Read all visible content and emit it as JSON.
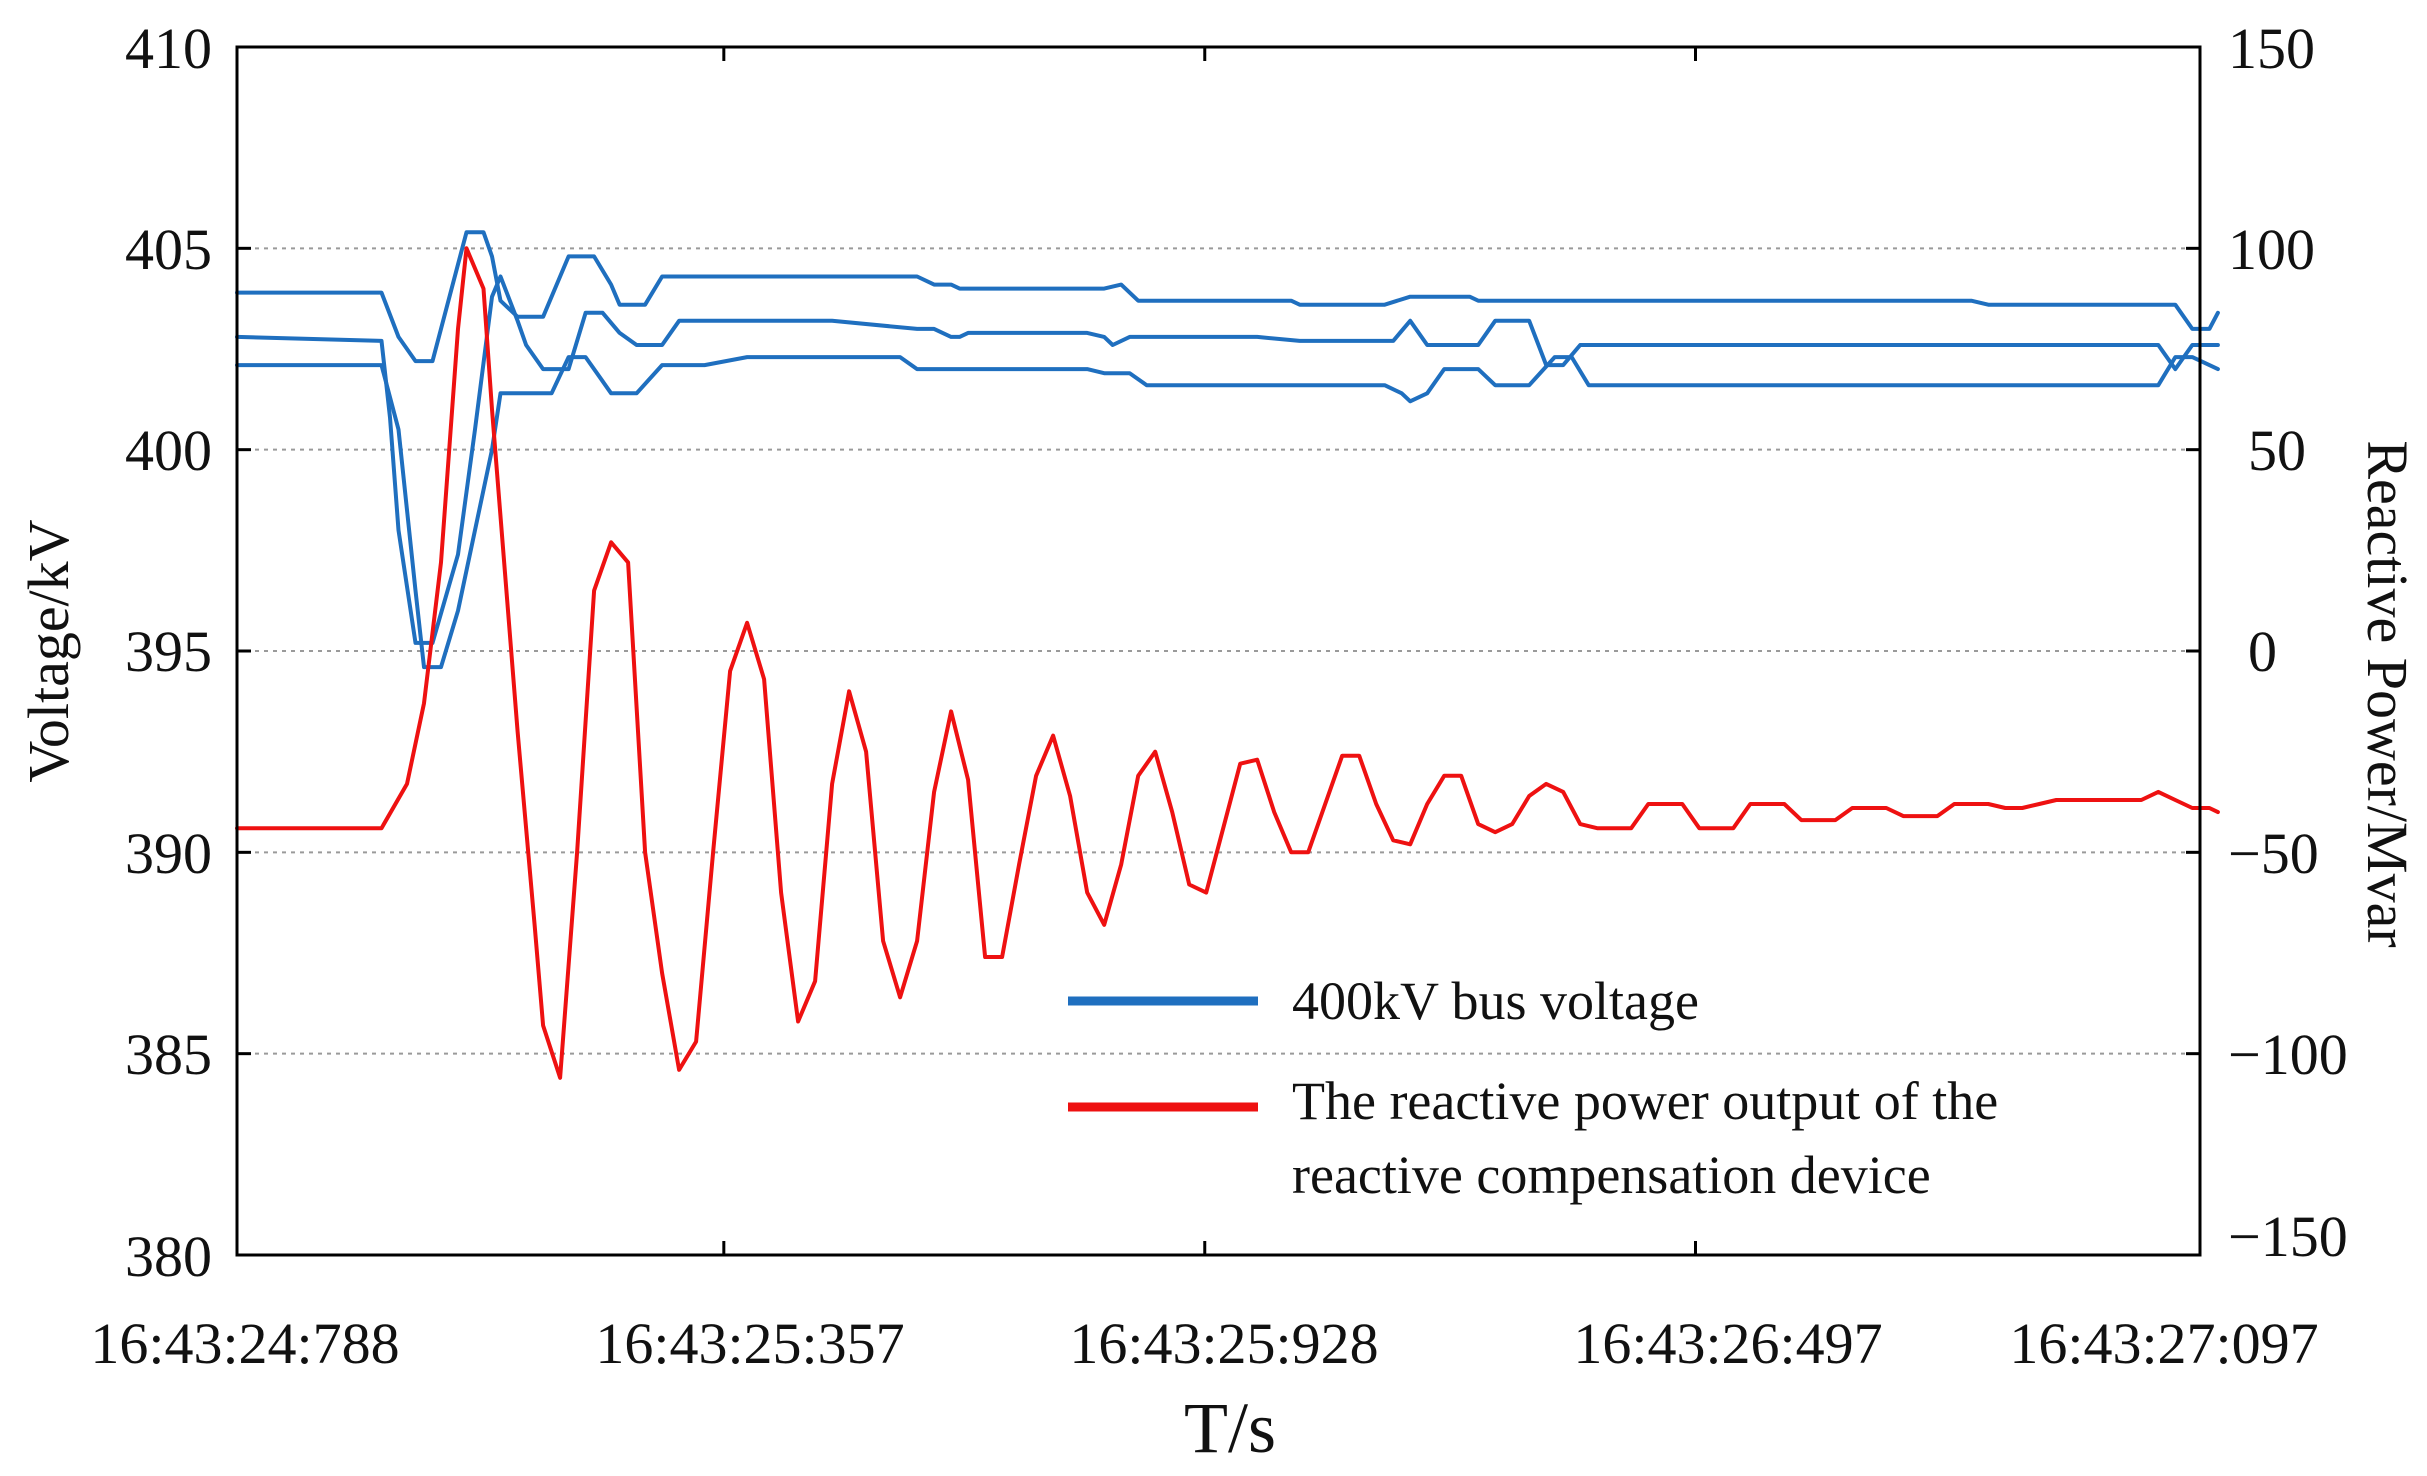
{
  "chart_data": {
    "type": "line",
    "title": "",
    "xlabel": "T/s",
    "ylabel_left": "Voltage/kV",
    "ylabel_right": "Reactive Power/Mvar",
    "x_tick_labels": [
      "16:43:24:788",
      "16:43:25:357",
      "16:43:25:928",
      "16:43:26:497",
      "16:43:27:097"
    ],
    "xlim": [
      0,
      2.309
    ],
    "ylim_left": [
      380,
      410
    ],
    "ylim_right": [
      -150,
      150
    ],
    "left_ticks": [
      "380",
      "385",
      "390",
      "395",
      "400",
      "405",
      "410"
    ],
    "right_ticks": [
      "−150",
      "−100",
      "−50",
      "0",
      "50",
      "100",
      "150"
    ],
    "grid": "horizontal dotted at 385, 390, 395, 400, 405 kV",
    "legend_position": "bottom-right",
    "legend": [
      {
        "label": "400kV bus voltage",
        "color": "#1f6fbf"
      },
      {
        "label_lines": [
          "The reactive power output of the",
          "reactive compensation device"
        ],
        "color": "#ee1111"
      }
    ],
    "series": [
      {
        "name": "400kV bus voltage",
        "axis": "left",
        "color": "#1f6fbf",
        "points": [
          [
            0.0,
            403.9
          ],
          [
            0.17,
            403.9
          ],
          [
            0.19,
            402.8
          ],
          [
            0.21,
            402.2
          ],
          [
            0.23,
            402.2
          ],
          [
            0.24,
            403.0
          ],
          [
            0.26,
            404.6
          ],
          [
            0.27,
            405.4
          ],
          [
            0.29,
            405.4
          ],
          [
            0.3,
            404.8
          ],
          [
            0.31,
            403.7
          ],
          [
            0.33,
            403.3
          ],
          [
            0.36,
            403.3
          ],
          [
            0.38,
            404.3
          ],
          [
            0.39,
            404.8
          ],
          [
            0.41,
            404.8
          ],
          [
            0.42,
            404.8
          ],
          [
            0.44,
            404.1
          ],
          [
            0.45,
            403.6
          ],
          [
            0.47,
            403.6
          ],
          [
            0.48,
            403.6
          ],
          [
            0.5,
            404.3
          ],
          [
            0.6,
            404.3
          ],
          [
            0.8,
            404.3
          ],
          [
            0.82,
            404.1
          ],
          [
            0.84,
            404.1
          ],
          [
            0.85,
            404.0
          ],
          [
            0.9,
            404.0
          ],
          [
            1.0,
            404.0
          ],
          [
            1.02,
            404.0
          ],
          [
            1.04,
            404.1
          ],
          [
            1.06,
            403.7
          ],
          [
            1.2,
            403.7
          ],
          [
            1.24,
            403.7
          ],
          [
            1.25,
            403.6
          ],
          [
            1.35,
            403.6
          ],
          [
            1.38,
            403.8
          ],
          [
            1.45,
            403.8
          ],
          [
            1.46,
            403.7
          ],
          [
            1.6,
            403.7
          ],
          [
            1.8,
            403.7
          ],
          [
            2.0,
            403.7
          ],
          [
            2.04,
            403.7
          ],
          [
            2.06,
            403.6
          ],
          [
            2.28,
            403.6
          ],
          [
            2.3,
            403.0
          ],
          [
            2.32,
            403.0
          ],
          [
            2.33,
            403.4
          ]
        ]
      },
      {
        "name": "400kV bus voltage",
        "axis": "left",
        "color": "#1f6fbf",
        "points": [
          [
            0.0,
            402.8
          ],
          [
            0.17,
            402.7
          ],
          [
            0.18,
            400.8
          ],
          [
            0.19,
            398.0
          ],
          [
            0.21,
            395.2
          ],
          [
            0.23,
            395.2
          ],
          [
            0.26,
            397.4
          ],
          [
            0.28,
            400.5
          ],
          [
            0.3,
            403.8
          ],
          [
            0.31,
            404.3
          ],
          [
            0.33,
            403.2
          ],
          [
            0.34,
            402.6
          ],
          [
            0.36,
            402.0
          ],
          [
            0.39,
            402.0
          ],
          [
            0.4,
            402.7
          ],
          [
            0.41,
            403.4
          ],
          [
            0.43,
            403.4
          ],
          [
            0.45,
            402.9
          ],
          [
            0.47,
            402.6
          ],
          [
            0.5,
            402.6
          ],
          [
            0.52,
            403.2
          ],
          [
            0.6,
            403.2
          ],
          [
            0.65,
            403.2
          ],
          [
            0.7,
            403.2
          ],
          [
            0.8,
            403.0
          ],
          [
            0.82,
            403.0
          ],
          [
            0.84,
            402.8
          ],
          [
            0.85,
            402.8
          ],
          [
            0.86,
            402.9
          ],
          [
            0.9,
            402.9
          ],
          [
            1.0,
            402.9
          ],
          [
            1.02,
            402.8
          ],
          [
            1.03,
            402.6
          ],
          [
            1.05,
            402.8
          ],
          [
            1.2,
            402.8
          ],
          [
            1.25,
            402.7
          ],
          [
            1.36,
            402.7
          ],
          [
            1.38,
            403.2
          ],
          [
            1.4,
            402.6
          ],
          [
            1.46,
            402.6
          ],
          [
            1.48,
            403.2
          ],
          [
            1.52,
            403.2
          ],
          [
            1.54,
            402.1
          ],
          [
            1.56,
            402.1
          ],
          [
            1.58,
            402.6
          ],
          [
            1.8,
            402.6
          ],
          [
            2.0,
            402.6
          ],
          [
            2.26,
            402.6
          ],
          [
            2.28,
            402.0
          ],
          [
            2.3,
            402.6
          ],
          [
            2.33,
            402.6
          ]
        ]
      },
      {
        "name": "400kV bus voltage",
        "axis": "left",
        "color": "#1f6fbf",
        "points": [
          [
            0.0,
            402.1
          ],
          [
            0.17,
            402.1
          ],
          [
            0.19,
            400.5
          ],
          [
            0.21,
            396.5
          ],
          [
            0.22,
            394.6
          ],
          [
            0.24,
            394.6
          ],
          [
            0.26,
            396.0
          ],
          [
            0.28,
            398.0
          ],
          [
            0.3,
            400.0
          ],
          [
            0.31,
            401.4
          ],
          [
            0.36,
            401.4
          ],
          [
            0.37,
            401.4
          ],
          [
            0.39,
            402.3
          ],
          [
            0.41,
            402.3
          ],
          [
            0.43,
            401.7
          ],
          [
            0.44,
            401.4
          ],
          [
            0.47,
            401.4
          ],
          [
            0.5,
            402.1
          ],
          [
            0.55,
            402.1
          ],
          [
            0.6,
            402.3
          ],
          [
            0.7,
            402.3
          ],
          [
            0.78,
            402.3
          ],
          [
            0.8,
            402.0
          ],
          [
            0.95,
            402.0
          ],
          [
            1.0,
            402.0
          ],
          [
            1.02,
            401.9
          ],
          [
            1.05,
            401.9
          ],
          [
            1.07,
            401.6
          ],
          [
            1.2,
            401.6
          ],
          [
            1.3,
            401.6
          ],
          [
            1.35,
            401.6
          ],
          [
            1.37,
            401.4
          ],
          [
            1.38,
            401.2
          ],
          [
            1.4,
            401.4
          ],
          [
            1.42,
            402.0
          ],
          [
            1.46,
            402.0
          ],
          [
            1.48,
            401.6
          ],
          [
            1.52,
            401.6
          ],
          [
            1.55,
            402.3
          ],
          [
            1.57,
            402.3
          ],
          [
            1.59,
            401.6
          ],
          [
            1.8,
            401.6
          ],
          [
            2.0,
            401.6
          ],
          [
            2.26,
            401.6
          ],
          [
            2.28,
            402.3
          ],
          [
            2.3,
            402.3
          ],
          [
            2.33,
            402.0
          ]
        ]
      },
      {
        "name": "The reactive power output of the reactive compensation device",
        "axis": "right",
        "color": "#ee1111",
        "points": [
          [
            0.0,
            -44
          ],
          [
            0.14,
            -44
          ],
          [
            0.17,
            -44
          ],
          [
            0.2,
            -33
          ],
          [
            0.22,
            -13
          ],
          [
            0.24,
            22
          ],
          [
            0.26,
            80
          ],
          [
            0.27,
            100
          ],
          [
            0.29,
            90
          ],
          [
            0.3,
            60
          ],
          [
            0.33,
            -20
          ],
          [
            0.35,
            -68
          ],
          [
            0.36,
            -93
          ],
          [
            0.38,
            -106
          ],
          [
            0.4,
            -50
          ],
          [
            0.42,
            15
          ],
          [
            0.44,
            27
          ],
          [
            0.46,
            22
          ],
          [
            0.48,
            -50
          ],
          [
            0.5,
            -80
          ],
          [
            0.52,
            -104
          ],
          [
            0.54,
            -97
          ],
          [
            0.56,
            -50
          ],
          [
            0.58,
            -5
          ],
          [
            0.6,
            7
          ],
          [
            0.62,
            -7
          ],
          [
            0.64,
            -60
          ],
          [
            0.66,
            -92
          ],
          [
            0.68,
            -82
          ],
          [
            0.7,
            -33
          ],
          [
            0.72,
            -10
          ],
          [
            0.74,
            -25
          ],
          [
            0.76,
            -72
          ],
          [
            0.78,
            -86
          ],
          [
            0.8,
            -72
          ],
          [
            0.82,
            -35
          ],
          [
            0.84,
            -15
          ],
          [
            0.86,
            -32
          ],
          [
            0.88,
            -76
          ],
          [
            0.9,
            -76
          ],
          [
            0.92,
            -53
          ],
          [
            0.94,
            -31
          ],
          [
            0.96,
            -21
          ],
          [
            0.98,
            -36
          ],
          [
            1.0,
            -60
          ],
          [
            1.02,
            -68
          ],
          [
            1.04,
            -53
          ],
          [
            1.06,
            -31
          ],
          [
            1.08,
            -25
          ],
          [
            1.1,
            -40
          ],
          [
            1.12,
            -58
          ],
          [
            1.14,
            -60
          ],
          [
            1.16,
            -44
          ],
          [
            1.18,
            -28
          ],
          [
            1.2,
            -27
          ],
          [
            1.22,
            -40
          ],
          [
            1.24,
            -50
          ],
          [
            1.26,
            -50
          ],
          [
            1.28,
            -38
          ],
          [
            1.3,
            -26
          ],
          [
            1.32,
            -26
          ],
          [
            1.34,
            -38
          ],
          [
            1.36,
            -47
          ],
          [
            1.38,
            -48
          ],
          [
            1.4,
            -38
          ],
          [
            1.42,
            -31
          ],
          [
            1.44,
            -31
          ],
          [
            1.46,
            -43
          ],
          [
            1.48,
            -45
          ],
          [
            1.5,
            -43
          ],
          [
            1.52,
            -36
          ],
          [
            1.54,
            -33
          ],
          [
            1.56,
            -35
          ],
          [
            1.58,
            -43
          ],
          [
            1.6,
            -44
          ],
          [
            1.62,
            -44
          ],
          [
            1.64,
            -44
          ],
          [
            1.66,
            -38
          ],
          [
            1.68,
            -38
          ],
          [
            1.7,
            -38
          ],
          [
            1.72,
            -44
          ],
          [
            1.74,
            -44
          ],
          [
            1.76,
            -44
          ],
          [
            1.78,
            -38
          ],
          [
            1.8,
            -38
          ],
          [
            1.82,
            -38
          ],
          [
            1.84,
            -42
          ],
          [
            1.86,
            -42
          ],
          [
            1.88,
            -42
          ],
          [
            1.9,
            -39
          ],
          [
            1.92,
            -39
          ],
          [
            1.94,
            -39
          ],
          [
            1.96,
            -41
          ],
          [
            1.98,
            -41
          ],
          [
            2.0,
            -41
          ],
          [
            2.02,
            -38
          ],
          [
            2.04,
            -38
          ],
          [
            2.06,
            -38
          ],
          [
            2.08,
            -39
          ],
          [
            2.1,
            -39
          ],
          [
            2.12,
            -38
          ],
          [
            2.14,
            -37
          ],
          [
            2.16,
            -37
          ],
          [
            2.2,
            -37
          ],
          [
            2.22,
            -37
          ],
          [
            2.24,
            -37
          ],
          [
            2.26,
            -35
          ],
          [
            2.28,
            -37
          ],
          [
            2.3,
            -39
          ],
          [
            2.32,
            -39
          ],
          [
            2.33,
            -40
          ]
        ]
      }
    ]
  }
}
